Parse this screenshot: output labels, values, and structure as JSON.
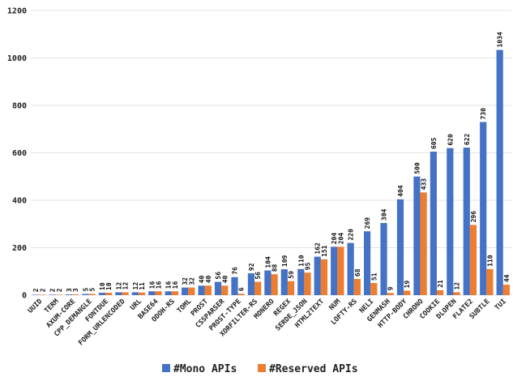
{
  "chart_data": {
    "type": "bar",
    "title": "",
    "xlabel": "",
    "ylabel": "",
    "ylim": [
      0,
      1200
    ],
    "yticks": [
      0,
      200,
      400,
      600,
      800,
      1000,
      1200
    ],
    "grid": true,
    "legend_position": "bottom",
    "categories": [
      "UUID",
      "TERM",
      "AXUM-CORE",
      "CPP_DEMANGLE",
      "FONTDUE",
      "FORM_URLENCODED",
      "URL",
      "BASE64",
      "ODOH-RS",
      "TOML",
      "PROST",
      "CSSPARSER",
      "PROST-TYPE",
      "XORFILTER-RS",
      "MONERO",
      "REGEX",
      "SERDE_JSON",
      "HTML2TEXT",
      "NUM",
      "LOFTY-RS",
      "NELI",
      "GENMASH",
      "HTTP-BODY",
      "CHRONO",
      "COOKIE",
      "DLOPEN",
      "FLATE2",
      "SUBTLE",
      "TUI"
    ],
    "series": [
      {
        "name": "#Mono APIs",
        "color": "#4472C4",
        "values": [
          2,
          2,
          3,
          5,
          10,
          12,
          12,
          16,
          16,
          32,
          40,
          56,
          76,
          92,
          104,
          109,
          110,
          162,
          204,
          220,
          269,
          304,
          404,
          500,
          605,
          620,
          622,
          730,
          1034
        ]
      },
      {
        "name": "#Reserved APIs",
        "color": "#ED7D31",
        "values": [
          2,
          2,
          3,
          5,
          10,
          12,
          11,
          16,
          16,
          32,
          40,
          40,
          6,
          56,
          88,
          59,
          95,
          151,
          204,
          68,
          51,
          9,
          19,
          433,
          21,
          12,
          296,
          110,
          44
        ]
      }
    ]
  }
}
